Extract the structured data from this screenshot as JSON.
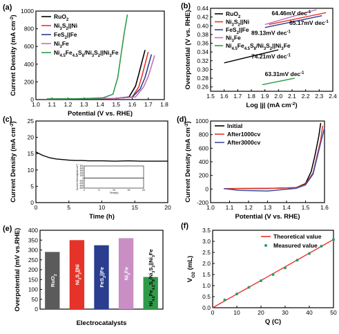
{
  "chart_data": [
    {
      "panel": "(a)",
      "type": "line",
      "xlabel": "Potential (V vs. RHE)",
      "ylabel": "Current Density (mA cm",
      "ylabel_sup": "-2",
      "ylabel_close": ")",
      "xlim": [
        1.0,
        1.8
      ],
      "ylim": [
        0,
        1000
      ],
      "xticks": [
        "1.0",
        "1.1",
        "1.2",
        "1.3",
        "1.4",
        "1.5",
        "1.6",
        "1.7",
        "1.8"
      ],
      "yticks": [
        "0",
        "200",
        "400",
        "600",
        "800",
        "1000"
      ],
      "legend_placement": "top-left",
      "series": [
        {
          "name": "RuO2",
          "display": [
            {
              "t": "RuO"
            },
            {
              "t": "2",
              "sub": true
            }
          ],
          "color": "#000000",
          "x": [
            1.07,
            1.35,
            1.5,
            1.58,
            1.62,
            1.64,
            1.66,
            1.68
          ],
          "y": [
            8,
            10,
            14,
            30,
            150,
            280,
            420,
            560
          ]
        },
        {
          "name": "Ni3S2||Ni",
          "display": [
            {
              "t": "Ni"
            },
            {
              "t": "3",
              "sub": true
            },
            {
              "t": "S"
            },
            {
              "t": "2",
              "sub": true
            },
            {
              "t": "||Ni"
            }
          ],
          "color": "#e5332a",
          "x": [
            1.07,
            1.35,
            1.5,
            1.6,
            1.64,
            1.66,
            1.68,
            1.7
          ],
          "y": [
            8,
            10,
            14,
            30,
            140,
            260,
            400,
            540
          ]
        },
        {
          "name": "FeS2||Fe",
          "display": [
            {
              "t": "FeS"
            },
            {
              "t": "2",
              "sub": true
            },
            {
              "t": "||Fe"
            }
          ],
          "color": "#2a3d8f",
          "x": [
            1.07,
            1.35,
            1.5,
            1.6,
            1.65,
            1.68,
            1.7,
            1.72
          ],
          "y": [
            8,
            10,
            14,
            28,
            120,
            250,
            380,
            510
          ]
        },
        {
          "name": "Ni3Fe",
          "display": [
            {
              "t": "Ni"
            },
            {
              "t": "3",
              "sub": true
            },
            {
              "t": "Fe"
            }
          ],
          "color": "#c36fb6",
          "x": [
            1.07,
            1.35,
            1.5,
            1.62,
            1.67,
            1.7,
            1.72,
            1.74
          ],
          "y": [
            8,
            10,
            14,
            30,
            140,
            260,
            380,
            500
          ]
        },
        {
          "name": "Ni4.5Fe4.5S8/Ni3S2||Ni3Fe",
          "display": [
            {
              "t": "Ni"
            },
            {
              "t": "4.5",
              "sub": true
            },
            {
              "t": "Fe"
            },
            {
              "t": "4.5",
              "sub": true
            },
            {
              "t": "S"
            },
            {
              "t": "8",
              "sub": true
            },
            {
              "t": "/Ni"
            },
            {
              "t": "3",
              "sub": true
            },
            {
              "t": "S"
            },
            {
              "t": "2",
              "sub": true
            },
            {
              "t": "||Ni"
            },
            {
              "t": "3",
              "sub": true
            },
            {
              "t": "Fe"
            }
          ],
          "color": "#2f9a4a",
          "x": [
            1.07,
            1.3,
            1.42,
            1.48,
            1.51,
            1.53,
            1.55,
            1.57
          ],
          "y": [
            8,
            10,
            20,
            60,
            250,
            500,
            750,
            960
          ]
        }
      ]
    },
    {
      "panel": "(b)",
      "type": "line",
      "xlabel": "Log |j| (mA cm",
      "xlabel_sup": "-2",
      "xlabel_close": ")",
      "ylabel": "Overpotential (V vs. RHE)",
      "xlim": [
        1.5,
        2.4
      ],
      "ylim": [
        0.25,
        0.44
      ],
      "xticks": [
        "1.5",
        "1.6",
        "1.7",
        "1.8",
        "1.9",
        "2.0",
        "2.1",
        "2.2",
        "2.3",
        "2.4"
      ],
      "yticks": [
        "0.26",
        "0.28",
        "0.30",
        "0.32",
        "0.34",
        "0.36",
        "0.38",
        "0.40",
        "0.42",
        "0.44"
      ],
      "legend_placement": "top-left",
      "series": [
        {
          "name": "RuO2",
          "display": [
            {
              "t": "RuO"
            },
            {
              "t": "2",
              "sub": true
            }
          ],
          "color": "#000000",
          "x": [
            1.6,
            2.0
          ],
          "y": [
            0.315,
            0.345
          ]
        },
        {
          "name": "Ni3S2||Ni",
          "display": [
            {
              "t": "Ni"
            },
            {
              "t": "3",
              "sub": true
            },
            {
              "t": "S"
            },
            {
              "t": "2",
              "sub": true
            },
            {
              "t": "||Ni"
            }
          ],
          "color": "#e5332a",
          "x": [
            1.93,
            2.35
          ],
          "y": [
            0.403,
            0.43
          ]
        },
        {
          "name": "FeS2||Fe",
          "display": [
            {
              "t": "FeS"
            },
            {
              "t": "2",
              "sub": true
            },
            {
              "t": "||Fe"
            }
          ],
          "color": "#2a3d8f",
          "x": [
            1.9,
            2.32
          ],
          "y": [
            0.396,
            0.423
          ]
        },
        {
          "name": "Ni3Fe",
          "display": [
            {
              "t": "Ni"
            },
            {
              "t": "3",
              "sub": true
            },
            {
              "t": "Fe"
            }
          ],
          "color": "#c36fb6",
          "x": [
            1.9,
            2.28
          ],
          "y": [
            0.403,
            0.437
          ]
        },
        {
          "name": "Ni4.5Fe4.5S8/Ni3S2||Ni3Fe",
          "display": [
            {
              "t": "Ni"
            },
            {
              "t": "4.5",
              "sub": true
            },
            {
              "t": "Fe"
            },
            {
              "t": "4.5",
              "sub": true
            },
            {
              "t": "S"
            },
            {
              "t": "8",
              "sub": true
            },
            {
              "t": "/Ni"
            },
            {
              "t": "3",
              "sub": true
            },
            {
              "t": "S"
            },
            {
              "t": "2",
              "sub": true
            },
            {
              "t": "||Ni"
            },
            {
              "t": "3",
              "sub": true
            },
            {
              "t": "Fe"
            }
          ],
          "color": "#2f9a4a",
          "x": [
            1.88,
            2.12
          ],
          "y": [
            0.265,
            0.28
          ]
        }
      ],
      "annotations": [
        {
          "text": "64.46mV dec",
          "sup": "-1",
          "x": 1.95,
          "y": 0.424
        },
        {
          "text": "65.17mV dec",
          "sup": "-1",
          "x": 2.08,
          "y": 0.402
        },
        {
          "text": "89.13mV dec",
          "sup": "-1",
          "x": 1.8,
          "y": 0.379
        },
        {
          "text": "74.21mV dec",
          "sup": "-1",
          "x": 1.8,
          "y": 0.325
        },
        {
          "text": "63.31mV dec",
          "sup": "-1",
          "x": 1.9,
          "y": 0.285
        }
      ]
    },
    {
      "panel": "(c)",
      "type": "line",
      "xlabel": "Time (h)",
      "ylabel": "Current Density (mA cm",
      "ylabel_sup": "-2",
      "ylabel_close": ")",
      "xlim": [
        0,
        20
      ],
      "ylim": [
        0,
        25
      ],
      "xticks": [
        "0",
        "5",
        "10",
        "15",
        "20"
      ],
      "yticks": [
        "0",
        "5",
        "10",
        "15",
        "20",
        "25"
      ],
      "series": [
        {
          "name": "",
          "color": "#000000",
          "x": [
            0,
            0.3,
            1,
            2,
            3,
            4,
            5,
            6,
            7,
            8,
            9,
            10,
            12,
            14,
            16,
            18,
            20
          ],
          "y": [
            15.5,
            15.2,
            14.5,
            13.8,
            13.4,
            13.2,
            13.0,
            12.9,
            12.9,
            12.8,
            12.8,
            12.8,
            12.7,
            12.8,
            12.7,
            12.7,
            12.7
          ]
        }
      ],
      "inset": {
        "xlabel": "Time(h)",
        "ylabel": "Current Density(mA cm",
        "ylabel_sup": "-2",
        "ylabel_close": ")",
        "xlim": [
          0,
          20
        ],
        "ylim": [
          -400,
          500
        ],
        "xticks": [
          "0",
          "5",
          "10",
          "15",
          "20"
        ],
        "yticks": [
          "-400",
          "-300",
          "-200",
          "-100",
          "0",
          "100",
          "200",
          "300",
          "400",
          "500"
        ],
        "x": [
          0,
          20
        ],
        "y": [
          12,
          12
        ]
      }
    },
    {
      "panel": "(d)",
      "type": "line",
      "xlabel": "Potential (V vs. RHE)",
      "ylabel": "Current Density (mA cm",
      "ylabel_sup": "-2",
      "ylabel_close": ")",
      "xlim": [
        1.0,
        1.6
      ],
      "ylim": [
        -200,
        1000
      ],
      "xticks": [
        "1.0",
        "1.1",
        "1.2",
        "1.3",
        "1.4",
        "1.5",
        "1.6"
      ],
      "yticks": [
        "-200",
        "0",
        "200",
        "400",
        "600",
        "800",
        "1000"
      ],
      "legend_placement": "top-left",
      "series": [
        {
          "name": "Initial",
          "color": "#000000",
          "x": [
            1.07,
            1.3,
            1.45,
            1.5,
            1.53,
            1.55,
            1.57,
            1.58
          ],
          "y": [
            5,
            8,
            20,
            80,
            260,
            500,
            780,
            970
          ]
        },
        {
          "name": "After1000cv",
          "color": "#e5332a",
          "x": [
            1.07,
            1.3,
            1.45,
            1.5,
            1.54,
            1.56,
            1.58,
            1.59
          ],
          "y": [
            5,
            8,
            20,
            70,
            240,
            480,
            720,
            930
          ]
        },
        {
          "name": "After3000cv",
          "color": "#3b4fa3",
          "x": [
            1.07,
            1.15,
            1.3,
            1.45,
            1.5,
            1.54,
            1.56,
            1.58,
            1.6
          ],
          "y": [
            5,
            -20,
            -30,
            10,
            60,
            220,
            450,
            680,
            900
          ]
        }
      ]
    },
    {
      "panel": "(e)",
      "type": "bar",
      "xlabel": "Electrocatalysts",
      "ylabel": "Overpotential (mV vs.RHE)",
      "ylim": [
        0,
        400
      ],
      "yticks": [
        "0",
        "50",
        "100",
        "150",
        "200",
        "250",
        "300",
        "350",
        "400"
      ],
      "categories": [
        "RuO2",
        "Ni3S2||Ni",
        "FeS2||Fe",
        "Ni3Fe",
        "Ni4.5Fe4.5S8/Ni3S2||Ni3Fe"
      ],
      "bar_labels": [
        [
          {
            "t": "RuO"
          },
          {
            "t": "2",
            "sub": true
          }
        ],
        [
          {
            "t": "Ni"
          },
          {
            "t": "3",
            "sub": true
          },
          {
            "t": "S"
          },
          {
            "t": "2",
            "sub": true
          },
          {
            "t": "||Ni"
          }
        ],
        [
          {
            "t": "FeS"
          },
          {
            "t": "2",
            "sub": true
          },
          {
            "t": "||Fe"
          }
        ],
        [
          {
            "t": "Ni"
          },
          {
            "t": "3",
            "sub": true
          },
          {
            "t": "Fe"
          }
        ],
        [
          {
            "t": "Ni"
          },
          {
            "t": "4.5",
            "sub": true
          },
          {
            "t": "Fe"
          },
          {
            "t": "4.5",
            "sub": true
          },
          {
            "t": "S"
          },
          {
            "t": "8",
            "sub": true
          },
          {
            "t": "/Ni"
          },
          {
            "t": "3",
            "sub": true
          },
          {
            "t": "S"
          },
          {
            "t": "2",
            "sub": true
          },
          {
            "t": "||Ni"
          },
          {
            "t": "3",
            "sub": true
          },
          {
            "t": "Fe"
          }
        ]
      ],
      "values": [
        290,
        350,
        324,
        360,
        163
      ],
      "colors": [
        "#5b5b5b",
        "#e5332a",
        "#2a3d8f",
        "#c98fc4",
        "#2f9a4a"
      ],
      "label_colors": [
        "#ffffff",
        "#ffffff",
        "#ffffff",
        "#ffffff",
        "#000000"
      ]
    },
    {
      "panel": "(f)",
      "type": "scatter",
      "xlabel": "Q (C)",
      "ylabel": "V",
      "ylabel_sub": "O2",
      "ylabel_close": " (mL)",
      "xlim": [
        0,
        50
      ],
      "ylim": [
        0,
        3.5
      ],
      "xticks": [
        "0",
        "10",
        "20",
        "30",
        "40",
        "50"
      ],
      "yticks": [
        "0.0",
        "0.5",
        "1.0",
        "1.5",
        "2.0",
        "2.5",
        "3.0",
        "3.5"
      ],
      "legend_placement": "top-right",
      "series": [
        {
          "name": "Theoretical value",
          "kind": "line",
          "color": "#e5332a",
          "x": [
            0,
            50
          ],
          "y": [
            0,
            3.08
          ]
        },
        {
          "name": "Measured value",
          "kind": "scatter",
          "color": "#2f9a6a",
          "x": [
            5,
            10,
            15,
            20,
            25,
            30,
            35,
            40,
            45,
            50
          ],
          "y": [
            0.35,
            0.62,
            0.92,
            1.22,
            1.5,
            1.8,
            2.15,
            2.45,
            2.78,
            3.08
          ]
        }
      ]
    }
  ]
}
